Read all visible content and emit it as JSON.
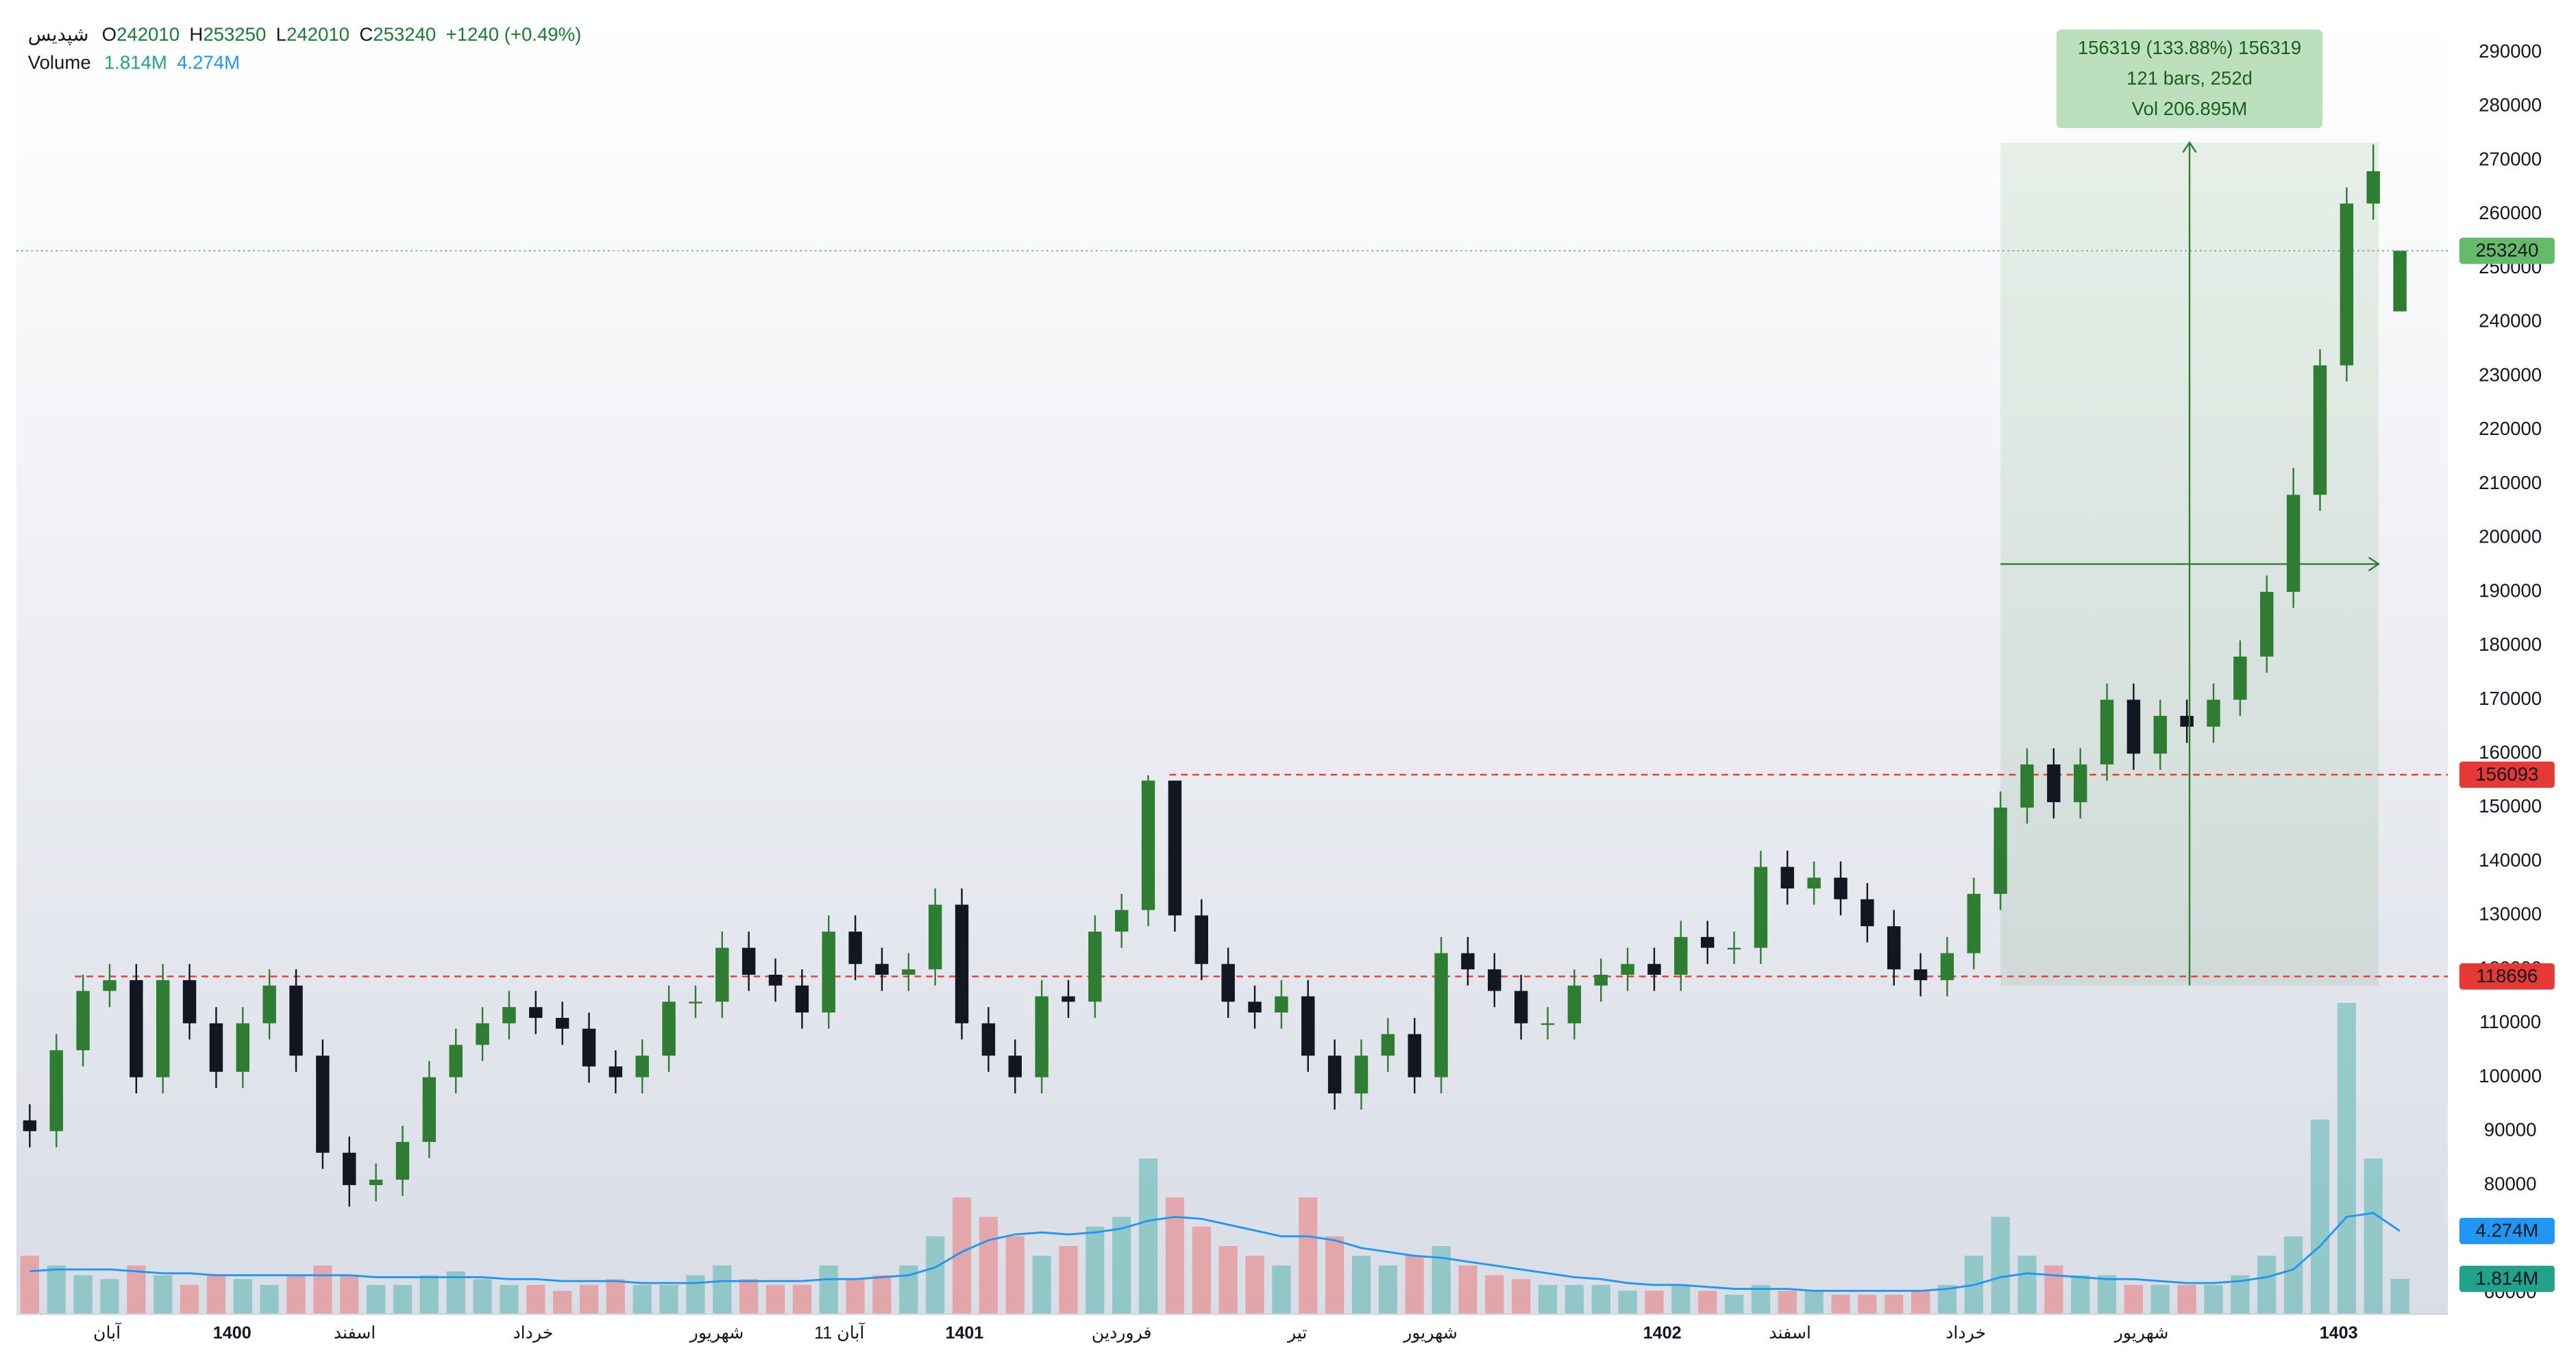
{
  "chart_data": {
    "type": "candlestick",
    "symbol": "شپدیس",
    "legend_keys": [
      "O",
      "H",
      "L",
      "C"
    ],
    "change_label": "+1240 (+0.49%)",
    "volume_title": "Volume",
    "xlim": [
      0,
      91.3
    ],
    "ylim": [
      56068,
      296700
    ],
    "yticks": [
      60000,
      70000,
      80000,
      90000,
      100000,
      110000,
      120000,
      130000,
      140000,
      150000,
      160000,
      170000,
      180000,
      190000,
      200000,
      210000,
      220000,
      230000,
      240000,
      250000,
      260000,
      270000,
      280000,
      290000
    ],
    "xticks": [
      {
        "value": 3.4,
        "label": "آبان"
      },
      {
        "value": 8.1,
        "label": "1400"
      },
      {
        "value": 12.7,
        "label": "اسفند"
      },
      {
        "value": 19.4,
        "label": "خرداد"
      },
      {
        "value": 26.3,
        "label": "شهریور"
      },
      {
        "value": 30.9,
        "label": "آبان 11"
      },
      {
        "value": 35.6,
        "label": "1401"
      },
      {
        "value": 41.5,
        "label": "فروردین"
      },
      {
        "value": 48.1,
        "label": "تیر"
      },
      {
        "value": 53.1,
        "label": "شهریور"
      },
      {
        "value": 61.8,
        "label": "1402"
      },
      {
        "value": 66.6,
        "label": "اسفند"
      },
      {
        "value": 73.2,
        "label": "خرداد"
      },
      {
        "value": 79.8,
        "label": "شهریور"
      },
      {
        "value": 87.2,
        "label": "1403"
      }
    ],
    "grid": false,
    "up_color": "#2e7d32",
    "down_color": "#131722",
    "open": [
      92000,
      90000,
      105000,
      116000,
      118000,
      100000,
      118000,
      110000,
      101000,
      110000,
      117000,
      104000,
      86000,
      80000,
      81000,
      88000,
      100000,
      106000,
      110000,
      113000,
      111000,
      109000,
      102000,
      100000,
      104000,
      114000,
      114000,
      124000,
      119000,
      117000,
      112000,
      127000,
      121000,
      119000,
      120000,
      132000,
      110000,
      104000,
      100000,
      115000,
      114000,
      127000,
      131000,
      155000,
      130000,
      121000,
      114000,
      112000,
      115000,
      104000,
      97000,
      104000,
      108000,
      100000,
      123000,
      120000,
      116000,
      110000,
      110000,
      117000,
      119000,
      121000,
      119000,
      126000,
      124000,
      124000,
      139000,
      135000,
      137000,
      133000,
      128000,
      120000,
      118000,
      123000,
      134000,
      150000,
      158000,
      151000,
      158000,
      170000,
      160000,
      167000,
      165000,
      170000,
      178000,
      190000,
      208000,
      232000,
      262000,
      242010
    ],
    "high": [
      95000,
      108000,
      119000,
      121000,
      121000,
      121000,
      121000,
      113000,
      113000,
      120000,
      120000,
      107000,
      89000,
      84000,
      91000,
      103000,
      109000,
      113000,
      116000,
      116000,
      114000,
      112000,
      105000,
      107000,
      117000,
      117000,
      127000,
      127000,
      122000,
      120000,
      130000,
      130000,
      124000,
      123000,
      135000,
      135000,
      113000,
      107000,
      118000,
      118000,
      130000,
      134000,
      156000,
      155000,
      133000,
      124000,
      117000,
      118000,
      118000,
      107000,
      107000,
      111000,
      111000,
      126000,
      126000,
      123000,
      119000,
      113000,
      120000,
      122000,
      124000,
      124000,
      129000,
      129000,
      127000,
      142000,
      142000,
      140000,
      140000,
      136000,
      131000,
      123000,
      126000,
      137000,
      153000,
      161000,
      161000,
      161000,
      173000,
      173000,
      170000,
      170000,
      173000,
      181000,
      193000,
      213000,
      235000,
      265000,
      273000,
      253250
    ],
    "low": [
      87000,
      87000,
      102000,
      113000,
      97000,
      97000,
      107000,
      98000,
      98000,
      107000,
      101000,
      83000,
      76000,
      77000,
      78000,
      85000,
      97000,
      103000,
      107000,
      108000,
      106000,
      99000,
      97000,
      97000,
      101000,
      111000,
      111000,
      116000,
      114000,
      109000,
      109000,
      118000,
      116000,
      116000,
      117000,
      107000,
      101000,
      97000,
      97000,
      111000,
      111000,
      124000,
      128000,
      127000,
      118000,
      111000,
      109000,
      109000,
      101000,
      94000,
      94000,
      101000,
      97000,
      97000,
      117000,
      113000,
      107000,
      107000,
      107000,
      114000,
      116000,
      116000,
      116000,
      121000,
      121000,
      121000,
      132000,
      132000,
      130000,
      125000,
      117000,
      115000,
      115000,
      120000,
      131000,
      147000,
      148000,
      148000,
      155000,
      157000,
      157000,
      162000,
      162000,
      167000,
      175000,
      187000,
      205000,
      229000,
      259000,
      242010
    ],
    "close": [
      90000,
      105000,
      116000,
      118000,
      100000,
      118000,
      110000,
      101000,
      110000,
      117000,
      104000,
      86000,
      80000,
      81000,
      88000,
      100000,
      106000,
      110000,
      113000,
      111000,
      109000,
      102000,
      100000,
      104000,
      114000,
      114000,
      124000,
      119000,
      117000,
      112000,
      127000,
      121000,
      119000,
      120000,
      132000,
      110000,
      104000,
      100000,
      115000,
      114000,
      127000,
      131000,
      155000,
      130000,
      121000,
      114000,
      112000,
      115000,
      104000,
      97000,
      104000,
      108000,
      100000,
      123000,
      120000,
      116000,
      110000,
      110000,
      117000,
      119000,
      121000,
      119000,
      126000,
      124000,
      124000,
      139000,
      135000,
      137000,
      133000,
      128000,
      120000,
      118000,
      123000,
      134000,
      150000,
      158000,
      151000,
      158000,
      170000,
      160000,
      167000,
      165000,
      170000,
      178000,
      190000,
      208000,
      232000,
      262000,
      268000,
      253240
    ],
    "last_price_color": "#66bb6a",
    "volume": {
      "values": [
        3,
        2.5,
        2,
        1.8,
        2.5,
        2,
        1.5,
        2,
        1.8,
        1.5,
        2,
        2.5,
        2,
        1.5,
        1.5,
        2,
        2.2,
        1.8,
        1.5,
        1.5,
        1.2,
        1.5,
        1.8,
        1.5,
        1.5,
        2,
        2.5,
        1.8,
        1.5,
        1.5,
        2.5,
        1.8,
        2,
        2.5,
        4,
        6,
        5,
        4,
        3,
        3.5,
        4.5,
        5,
        8,
        6,
        4.5,
        3.5,
        3,
        2.5,
        6,
        4,
        3,
        2.5,
        3,
        3.5,
        2.5,
        2,
        1.8,
        1.5,
        1.5,
        1.5,
        1.2,
        1.2,
        1.5,
        1.2,
        1,
        1.5,
        1.2,
        1.2,
        1,
        1,
        1,
        1.2,
        1.5,
        3,
        5,
        3,
        2.5,
        2,
        2,
        1.5,
        1.5,
        1.5,
        1.5,
        2,
        3,
        4,
        10,
        16,
        8,
        1.814
      ],
      "last_label": "1.814M",
      "ylim": [
        0,
        66.7
      ],
      "up_color": "#26a69a",
      "down_color": "#ef5350",
      "label_color": "#22a389"
    },
    "volume_ma": {
      "values": [
        2.2,
        2.3,
        2.3,
        2.3,
        2.2,
        2.1,
        2.1,
        2,
        2,
        2,
        2,
        2,
        2,
        1.9,
        1.9,
        1.9,
        1.9,
        1.9,
        1.8,
        1.8,
        1.7,
        1.7,
        1.7,
        1.6,
        1.6,
        1.6,
        1.7,
        1.7,
        1.7,
        1.7,
        1.8,
        1.8,
        1.9,
        2,
        2.4,
        3.2,
        3.8,
        4.1,
        4.2,
        4.1,
        4.2,
        4.4,
        4.8,
        5,
        4.9,
        4.6,
        4.3,
        4,
        4,
        3.8,
        3.4,
        3.2,
        3,
        2.9,
        2.7,
        2.5,
        2.3,
        2.1,
        1.9,
        1.8,
        1.6,
        1.5,
        1.5,
        1.4,
        1.3,
        1.3,
        1.3,
        1.2,
        1.2,
        1.2,
        1.2,
        1.2,
        1.3,
        1.5,
        1.9,
        2.1,
        2,
        1.9,
        1.8,
        1.8,
        1.7,
        1.6,
        1.6,
        1.7,
        1.9,
        2.3,
        3.5,
        5,
        5.2,
        4.274
      ],
      "last_label": "4.274M",
      "color": "#2196f3"
    },
    "hlines": {
      "lines": [
        {
          "value": 156093,
          "from": 43.3
        },
        {
          "value": 118696,
          "from": 2.2
        }
      ],
      "color": "#e53935"
    },
    "measure": {
      "from": 74.5,
      "to": 88.7,
      "low": 117000,
      "high": 273319,
      "labels": [
        "156319 (133.88%) 156319",
        "121 bars, 252d",
        "Vol 206.895M"
      ],
      "color": "#2e7d32"
    }
  }
}
